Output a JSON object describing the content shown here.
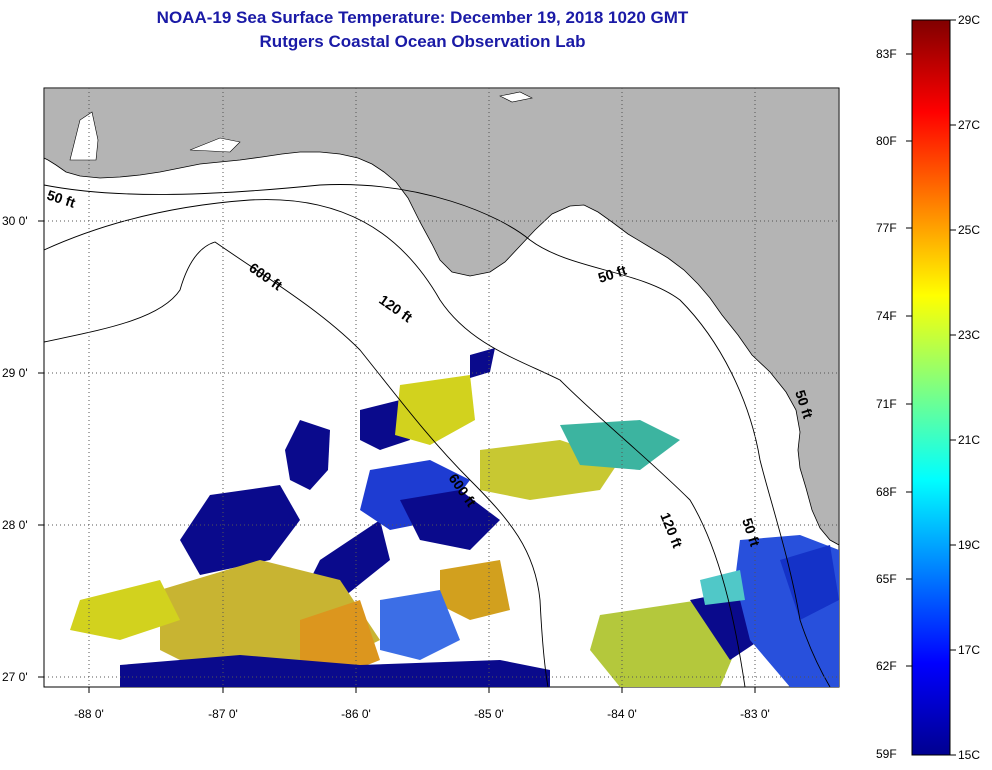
{
  "title": {
    "line1": "NOAA-19 Sea Surface Temperature:  December 19, 2018 1020 GMT",
    "line2": "Rutgers Coastal Ocean Observation Lab"
  },
  "map": {
    "lat_labels": [
      "30 0'",
      "29 0'",
      "28 0'",
      "27 0'"
    ],
    "lon_labels": [
      "-88 0'",
      "-87 0'",
      "-86 0'",
      "-85 0'",
      "-84 0'",
      "-83 0'"
    ],
    "contour_labels": [
      "50 ft",
      "600 ft",
      "120 ft",
      "50 ft",
      "600 ft",
      "120 ft",
      "50 ft",
      "50 ft"
    ],
    "colors": {
      "land": "#b4b4b4",
      "ocean": "#ffffff",
      "grid": "#555555"
    }
  },
  "colorbar": {
    "fahrenheit_labels": [
      "83F",
      "80F",
      "77F",
      "74F",
      "71F",
      "68F",
      "65F",
      "62F",
      "59F"
    ],
    "celsius_labels": [
      "29C",
      "27C",
      "25C",
      "23C",
      "21C",
      "19C",
      "17C",
      "15C"
    ],
    "range_c": [
      15,
      29
    ],
    "colors": [
      "#00008f",
      "#0000ff",
      "#0080ff",
      "#00ffff",
      "#80ff80",
      "#ffff00",
      "#ff8000",
      "#ff0000",
      "#800000"
    ]
  }
}
